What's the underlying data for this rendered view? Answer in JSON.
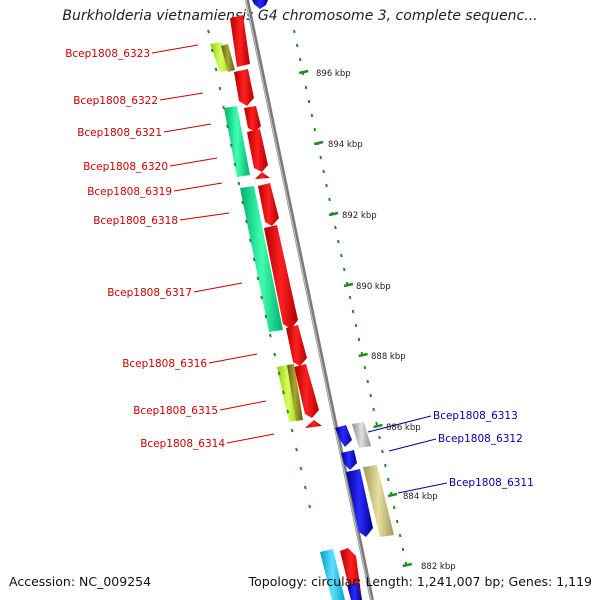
{
  "title": "Burkholderia vietnamiensis G4 chromosome 3, complete sequenc...",
  "footer": {
    "accession": "Accession: NC_009254",
    "topology": "Topology: circular; Length: 1,241,007 bp; Genes: 1,119"
  },
  "ticks": [
    "896 kbp",
    "894 kbp",
    "892 kbp",
    "890 kbp",
    "888 kbp",
    "886 kbp",
    "884 kbp",
    "882 kbp"
  ],
  "genes_left": [
    "Bcep1808_6323",
    "Bcep1808_6322",
    "Bcep1808_6321",
    "Bcep1808_6320",
    "Bcep1808_6319",
    "Bcep1808_6318",
    "Bcep1808_6317",
    "Bcep1808_6316",
    "Bcep1808_6315",
    "Bcep1808_6314"
  ],
  "genes_right": [
    "Bcep1808_6313",
    "Bcep1808_6312",
    "Bcep1808_6311"
  ],
  "colors": {
    "reverse_strand": "#ff0000",
    "forward_strand": "#0000ee",
    "left_label": "#cc0000",
    "right_label": "#0000aa",
    "tick_marks": "#228b22",
    "backbone": "#8a8a8a"
  }
}
